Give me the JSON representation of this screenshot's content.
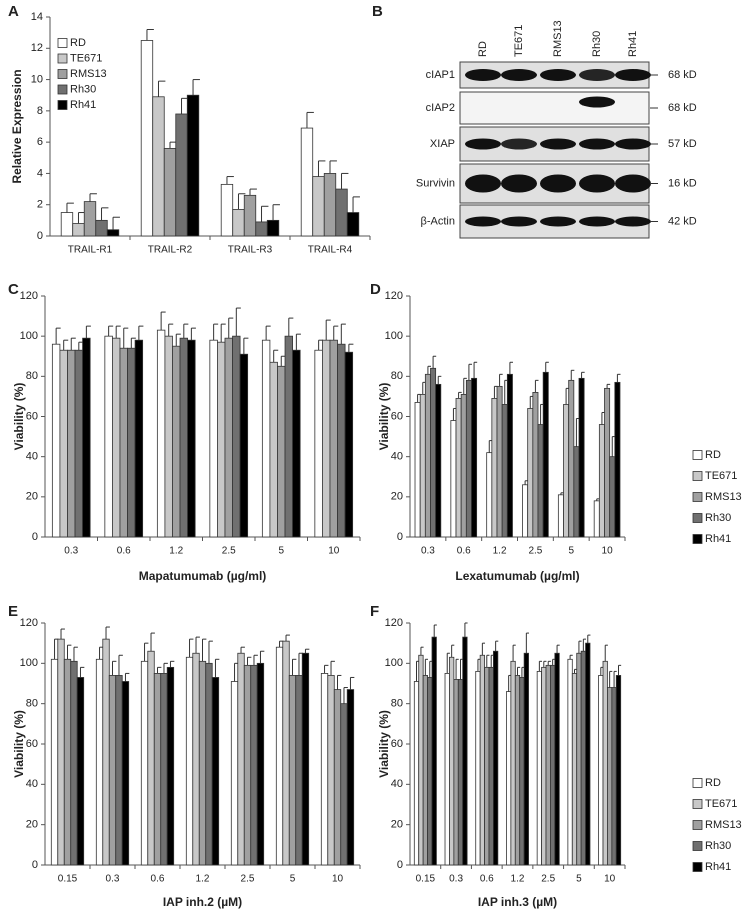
{
  "chart_data": [
    {
      "type": "bar",
      "label": "A",
      "y_label": "Relative Expression",
      "legend": "top-left",
      "categories": [
        "TRAIL-R1",
        "TRAIL-R2",
        "TRAIL-R3",
        "TRAIL-R4"
      ],
      "ylim": [
        0,
        14
      ],
      "yticks": [
        0,
        2,
        4,
        6,
        8,
        10,
        12,
        14
      ],
      "series": [
        {
          "name": "RD",
          "color": "#ffffff",
          "values": [
            1.5,
            12.5,
            3.3,
            6.9
          ],
          "errors": [
            0.6,
            0.7,
            0.5,
            1.0
          ]
        },
        {
          "name": "TE671",
          "color": "#c8c8c8",
          "values": [
            0.8,
            8.9,
            1.7,
            3.8
          ],
          "errors": [
            0.7,
            1.0,
            1.0,
            1.0
          ]
        },
        {
          "name": "RMS13",
          "color": "#a0a0a0",
          "values": [
            2.2,
            5.6,
            2.6,
            4.0
          ],
          "errors": [
            0.5,
            0.4,
            0.4,
            0.8
          ]
        },
        {
          "name": "Rh30",
          "color": "#707070",
          "values": [
            1.0,
            7.8,
            0.9,
            3.0
          ],
          "errors": [
            0.8,
            1.0,
            1.0,
            1.0
          ]
        },
        {
          "name": "Rh41",
          "color": "#000000",
          "values": [
            0.4,
            9.0,
            1.0,
            1.5
          ],
          "errors": [
            0.8,
            1.0,
            1.0,
            1.0
          ]
        }
      ]
    },
    {
      "type": "bar",
      "label": "C",
      "y_label": "Viability (%)",
      "x_label": "Mapatumumab (µg/ml)",
      "categories": [
        "0.3",
        "0.6",
        "1.2",
        "2.5",
        "5",
        "10"
      ],
      "ylim": [
        0,
        120
      ],
      "yticks": [
        0,
        20,
        40,
        60,
        80,
        100,
        120
      ],
      "series": [
        {
          "name": "RD",
          "color": "#ffffff",
          "values": [
            96,
            100,
            103,
            98,
            98,
            93
          ],
          "errors": [
            8,
            5,
            9,
            8,
            7,
            5
          ]
        },
        {
          "name": "TE671",
          "color": "#c8c8c8",
          "values": [
            93,
            99,
            100,
            97,
            87,
            98
          ],
          "errors": [
            5,
            6,
            6,
            9,
            6,
            10
          ]
        },
        {
          "name": "RMS13",
          "color": "#a0a0a0",
          "values": [
            93,
            94,
            95,
            99,
            85,
            98
          ],
          "errors": [
            6,
            10,
            6,
            10,
            5,
            7
          ]
        },
        {
          "name": "Rh30",
          "color": "#707070",
          "values": [
            93,
            94,
            99,
            100,
            100,
            96
          ],
          "errors": [
            4,
            5,
            7,
            14,
            9,
            10
          ]
        },
        {
          "name": "Rh41",
          "color": "#000000",
          "values": [
            99,
            98,
            98,
            91,
            93,
            92
          ],
          "errors": [
            6,
            7,
            6,
            8,
            8,
            4
          ]
        }
      ]
    },
    {
      "type": "bar",
      "label": "D",
      "y_label": "Viability (%)",
      "x_label": "Lexatumumab (µg/ml)",
      "legend": "right",
      "categories": [
        "0.3",
        "0.6",
        "1.2",
        "2.5",
        "5",
        "10"
      ],
      "ylim": [
        0,
        120
      ],
      "yticks": [
        0,
        20,
        40,
        60,
        80,
        100,
        120
      ],
      "series": [
        {
          "name": "RD",
          "color": "#ffffff",
          "values": [
            67,
            58,
            42,
            26,
            21,
            18
          ],
          "errors": [
            4,
            6,
            6,
            2,
            1,
            1
          ]
        },
        {
          "name": "TE671",
          "color": "#c8c8c8",
          "values": [
            71,
            69,
            69,
            64,
            66,
            56
          ],
          "errors": [
            6,
            3,
            6,
            6,
            8,
            6
          ]
        },
        {
          "name": "RMS13",
          "color": "#a0a0a0",
          "values": [
            81,
            71,
            75,
            72,
            78,
            74
          ],
          "errors": [
            4,
            8,
            6,
            6,
            5,
            2
          ]
        },
        {
          "name": "Rh30",
          "color": "#707070",
          "values": [
            84,
            78,
            66,
            56,
            45,
            40
          ],
          "errors": [
            6,
            8,
            12,
            10,
            14,
            10
          ]
        },
        {
          "name": "Rh41",
          "color": "#000000",
          "values": [
            76,
            79,
            81,
            82,
            79,
            77
          ],
          "errors": [
            4,
            8,
            6,
            5,
            3,
            4
          ]
        }
      ]
    },
    {
      "type": "bar",
      "label": "E",
      "y_label": "Viability (%)",
      "x_label": "IAP inh.2 (µM)",
      "categories": [
        "0.15",
        "0.3",
        "0.6",
        "1.2",
        "2.5",
        "5",
        "10"
      ],
      "ylim": [
        0,
        120
      ],
      "yticks": [
        0,
        20,
        40,
        60,
        80,
        100,
        120
      ],
      "series": [
        {
          "name": "RD",
          "color": "#ffffff",
          "values": [
            102,
            102,
            101,
            103,
            91,
            108,
            95
          ],
          "errors": [
            10,
            6,
            9,
            9,
            9,
            3,
            4
          ]
        },
        {
          "name": "TE671",
          "color": "#c8c8c8",
          "values": [
            112,
            112,
            106,
            105,
            105,
            111,
            94
          ],
          "errors": [
            5,
            6,
            9,
            8,
            3,
            3,
            7
          ]
        },
        {
          "name": "RMS13",
          "color": "#a0a0a0",
          "values": [
            102,
            94,
            95,
            101,
            99,
            94,
            87
          ],
          "errors": [
            7,
            7,
            3,
            11,
            4,
            8,
            7
          ]
        },
        {
          "name": "Rh30",
          "color": "#707070",
          "values": [
            101,
            94,
            95,
            100,
            99,
            94,
            80
          ],
          "errors": [
            7,
            10,
            5,
            11,
            5,
            11,
            8
          ]
        },
        {
          "name": "Rh41",
          "color": "#000000",
          "values": [
            93,
            91,
            98,
            93,
            100,
            105,
            87
          ],
          "errors": [
            5,
            4,
            3,
            9,
            6,
            2,
            6
          ]
        }
      ]
    },
    {
      "type": "bar",
      "label": "F",
      "y_label": "Viability (%)",
      "x_label": "IAP inh.3 (µM)",
      "legend": "right",
      "categories": [
        "0.15",
        "0.3",
        "0.6",
        "1.2",
        "2.5",
        "5",
        "10"
      ],
      "ylim": [
        0,
        120
      ],
      "yticks": [
        0,
        20,
        40,
        60,
        80,
        100,
        120
      ],
      "series": [
        {
          "name": "RD",
          "color": "#ffffff",
          "values": [
            91,
            95,
            96,
            86,
            96,
            102,
            94
          ],
          "errors": [
            10,
            10,
            6,
            8,
            5,
            2,
            4
          ]
        },
        {
          "name": "TE671",
          "color": "#c8c8c8",
          "values": [
            104,
            103,
            104,
            101,
            98,
            95,
            101
          ],
          "errors": [
            4,
            6,
            6,
            8,
            3,
            2,
            8
          ]
        },
        {
          "name": "RMS13",
          "color": "#a0a0a0",
          "values": [
            94,
            92,
            98,
            94,
            99,
            105,
            88
          ],
          "errors": [
            8,
            10,
            6,
            4,
            2,
            6,
            8
          ]
        },
        {
          "name": "Rh30",
          "color": "#707070",
          "values": [
            93,
            92,
            98,
            93,
            99,
            106,
            88
          ],
          "errors": [
            8,
            10,
            6,
            5,
            3,
            6,
            8
          ]
        },
        {
          "name": "Rh41",
          "color": "#000000",
          "values": [
            113,
            113,
            106,
            105,
            105,
            110,
            94
          ],
          "errors": [
            6,
            7,
            5,
            10,
            4,
            4,
            5
          ]
        }
      ]
    }
  ],
  "blot": {
    "label": "B",
    "lanes": [
      "RD",
      "TE671",
      "RMS13",
      "Rh30",
      "Rh41"
    ],
    "rows": [
      {
        "protein": "cIAP1",
        "size": "68 kD"
      },
      {
        "protein": "cIAP2",
        "size": "68 kD"
      },
      {
        "protein": "XIAP",
        "size": "57 kD"
      },
      {
        "protein": "Survivin",
        "size": "16 kD"
      },
      {
        "protein": "β-Actin",
        "size": "42 kD"
      }
    ]
  }
}
